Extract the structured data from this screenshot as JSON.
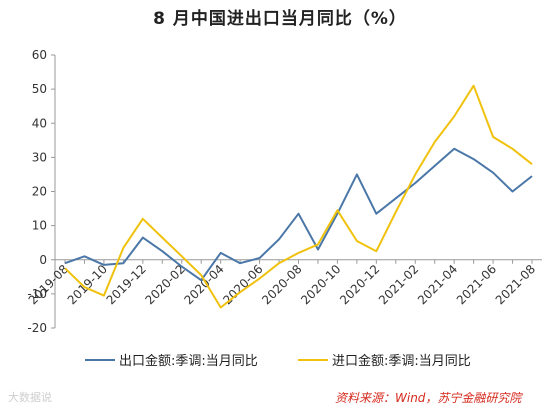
{
  "chart_data": {
    "type": "line",
    "title": "8 月中国进出口当月同比（%）",
    "x": [
      "2019-08",
      "2019-09",
      "2019-10",
      "2019-11",
      "2019-12",
      "2020-01",
      "2020-02",
      "2020-03",
      "2020-04",
      "2020-05",
      "2020-06",
      "2020-07",
      "2020-08",
      "2020-09",
      "2020-10",
      "2020-11",
      "2020-12",
      "2021-01",
      "2021-02",
      "2021-03",
      "2021-04",
      "2021-05",
      "2021-06",
      "2021-07",
      "2021-08"
    ],
    "x_tick_labels": [
      "2019-08",
      "2019-10",
      "2019-12",
      "2020-02",
      "2020-04",
      "2020-06",
      "2020-08",
      "2020-10",
      "2020-12",
      "2021-02",
      "2021-04",
      "2021-06",
      "2021-08"
    ],
    "series": [
      {
        "name": "出口金额:季调:当月同比",
        "color": "#4a77a8",
        "values": [
          -1,
          1,
          -1.5,
          -1,
          6.5,
          2.5,
          -2,
          -6,
          2,
          -1,
          0.5,
          6,
          13.5,
          3,
          13.5,
          25,
          13.5,
          18,
          22.5,
          27.5,
          32.5,
          29.5,
          25.5,
          20,
          24.5
        ]
      },
      {
        "name": "进口金额:季调:当月同比",
        "color": "#f0c20e",
        "values": [
          -2.5,
          -8,
          -10.5,
          3.5,
          12,
          6.5,
          1,
          -4.5,
          -14,
          -9.5,
          -5.5,
          -1,
          2,
          4.5,
          14.5,
          5.5,
          2.5,
          14,
          25,
          34.5,
          42,
          51,
          36,
          32.5,
          28
        ]
      }
    ],
    "ylim": [
      -20,
      60
    ],
    "yticks": [
      -20,
      -10,
      0,
      10,
      20,
      30,
      40,
      50,
      60
    ],
    "grid": false,
    "legend_position": "bottom"
  },
  "footer": {
    "source": "资料来源：Wind，苏宁金融研究院",
    "watermark": "大数据说"
  }
}
